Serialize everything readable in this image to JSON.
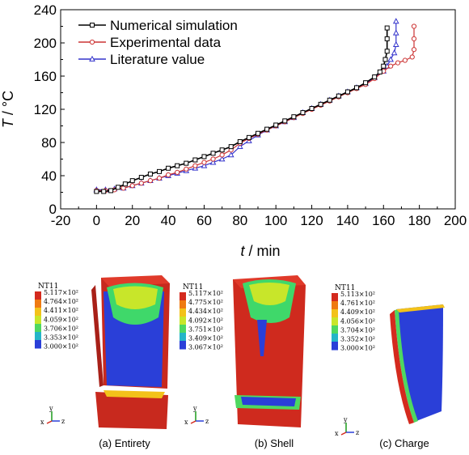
{
  "chart_data": {
    "type": "line",
    "xlabel_var": "t",
    "xlabel_unit": "min",
    "ylabel_var": "T",
    "ylabel_unit": "°C",
    "xlim": [
      -20,
      200
    ],
    "ylim": [
      0,
      240
    ],
    "xticks": [
      "-20",
      "0",
      "20",
      "40",
      "60",
      "80",
      "100",
      "120",
      "140",
      "160",
      "180",
      "200"
    ],
    "yticks": [
      "0",
      "40",
      "80",
      "120",
      "160",
      "200",
      "240"
    ],
    "grid": false,
    "legend_position": "top-left",
    "series": [
      {
        "name": "Numerical simulation",
        "color": "#000000",
        "marker": "square",
        "x": [
          0,
          4,
          8,
          12,
          16,
          20,
          25,
          30,
          35,
          40,
          45,
          50,
          55,
          60,
          65,
          70,
          75,
          80,
          85,
          90,
          95,
          100,
          105,
          110,
          115,
          120,
          125,
          130,
          135,
          140,
          145,
          150,
          155,
          158,
          160,
          161,
          162,
          162,
          162
        ],
        "y": [
          21,
          21,
          22,
          26,
          30,
          34,
          38,
          42,
          45,
          49,
          52,
          55,
          59,
          63,
          67,
          71,
          75,
          81,
          86,
          91,
          96,
          101,
          106,
          111,
          116,
          121,
          126,
          131,
          136,
          141,
          146,
          152,
          159,
          165,
          172,
          180,
          190,
          205,
          218
        ]
      },
      {
        "name": "Experimental data",
        "color": "#cc3333",
        "marker": "circle",
        "x": [
          0,
          5,
          10,
          15,
          20,
          25,
          30,
          35,
          40,
          45,
          50,
          55,
          60,
          65,
          70,
          75,
          80,
          85,
          90,
          95,
          100,
          105,
          110,
          115,
          120,
          125,
          130,
          135,
          140,
          145,
          150,
          155,
          160,
          164,
          168,
          172,
          176,
          177,
          177,
          177
        ],
        "y": [
          22,
          22,
          23,
          25,
          28,
          31,
          34,
          37,
          41,
          44,
          48,
          52,
          56,
          60,
          65,
          71,
          79,
          85,
          90,
          95,
          100,
          105,
          110,
          115,
          120,
          125,
          130,
          135,
          140,
          145,
          150,
          157,
          166,
          172,
          176,
          179,
          183,
          192,
          205,
          220
        ]
      },
      {
        "name": "Literature value",
        "color": "#3333cc",
        "marker": "triangle",
        "x": [
          0,
          5,
          10,
          15,
          20,
          25,
          30,
          35,
          40,
          45,
          50,
          55,
          60,
          65,
          70,
          75,
          80,
          85,
          90,
          95,
          100,
          105,
          110,
          115,
          120,
          125,
          130,
          135,
          140,
          145,
          150,
          155,
          160,
          162,
          164,
          166,
          167,
          167,
          167
        ],
        "y": [
          23,
          23,
          24,
          25,
          28,
          31,
          34,
          37,
          40,
          43,
          46,
          49,
          52,
          56,
          60,
          65,
          75,
          82,
          89,
          95,
          100,
          105,
          110,
          116,
          121,
          126,
          131,
          136,
          141,
          146,
          151,
          158,
          166,
          172,
          180,
          188,
          198,
          212,
          226
        ]
      }
    ]
  },
  "fe_panels": [
    {
      "caption": "(a) Entirety",
      "legend_title": "NT11",
      "legend_values": [
        "5.117×10²",
        "4.764×10²",
        "4.411×10²",
        "4.059×10²",
        "3.706×10²",
        "3.353×10²",
        "3.000×10²"
      ]
    },
    {
      "caption": "(b) Shell",
      "legend_title": "NT11",
      "legend_values": [
        "5.117×10²",
        "4.775×10²",
        "4.434×10²",
        "4.092×10²",
        "3.751×10²",
        "3.409×10²",
        "3.067×10²"
      ]
    },
    {
      "caption": "(c) Charge",
      "legend_title": "NT11",
      "legend_values": [
        "5.113×10²",
        "4.761×10²",
        "4.409×10²",
        "4.056×10²",
        "3.704×10²",
        "3.352×10²",
        "3.000×10²"
      ]
    }
  ],
  "triad": {
    "x": "x",
    "y": "y",
    "z": "z"
  },
  "colorbar_colors": [
    "#d42a1e",
    "#ef7a12",
    "#f3c21a",
    "#c8e62a",
    "#4ed860",
    "#24b5c8",
    "#2a3fd8"
  ]
}
